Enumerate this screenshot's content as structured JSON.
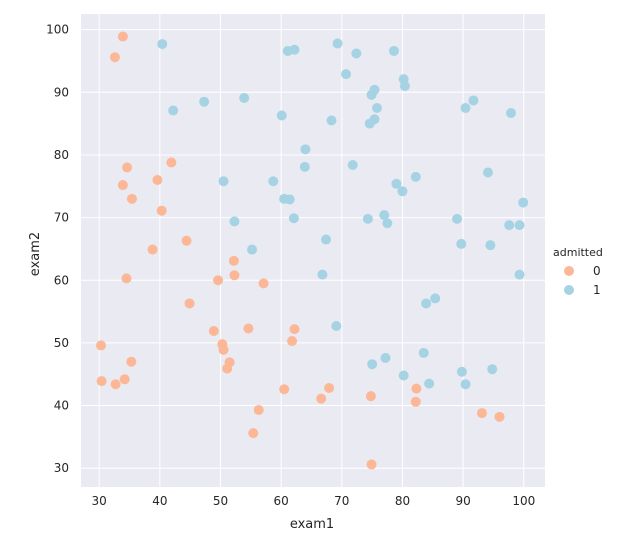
{
  "chart_data": {
    "type": "scatter",
    "xlabel": "exam1",
    "ylabel": "exam2",
    "xlim": [
      27.0,
      103.5
    ],
    "ylim": [
      27.0,
      102.5
    ],
    "xticks": [
      30,
      40,
      50,
      60,
      70,
      80,
      90,
      100
    ],
    "yticks": [
      30,
      40,
      50,
      60,
      70,
      80,
      90,
      100
    ],
    "grid": true,
    "background": "#eaeaf2",
    "legend": {
      "title": "admitted",
      "placement": "right"
    },
    "series": [
      {
        "name": "0",
        "color": "#fcb796",
        "points": [
          [
            33.9,
            98.9
          ],
          [
            32.6,
            95.6
          ],
          [
            34.6,
            78.0
          ],
          [
            41.9,
            78.8
          ],
          [
            39.6,
            76.0
          ],
          [
            33.9,
            75.2
          ],
          [
            35.4,
            73.0
          ],
          [
            40.3,
            71.1
          ],
          [
            44.4,
            66.3
          ],
          [
            38.8,
            64.9
          ],
          [
            52.2,
            63.1
          ],
          [
            34.5,
            60.3
          ],
          [
            52.3,
            60.8
          ],
          [
            49.6,
            60.0
          ],
          [
            57.1,
            59.5
          ],
          [
            44.9,
            56.3
          ],
          [
            48.9,
            51.9
          ],
          [
            62.2,
            52.2
          ],
          [
            54.6,
            52.3
          ],
          [
            50.3,
            49.8
          ],
          [
            30.3,
            49.6
          ],
          [
            61.8,
            50.3
          ],
          [
            50.5,
            48.9
          ],
          [
            51.5,
            46.9
          ],
          [
            35.3,
            47.0
          ],
          [
            51.1,
            45.9
          ],
          [
            34.2,
            44.2
          ],
          [
            30.4,
            43.9
          ],
          [
            32.7,
            43.4
          ],
          [
            60.5,
            42.6
          ],
          [
            67.9,
            42.8
          ],
          [
            82.3,
            42.7
          ],
          [
            66.6,
            41.1
          ],
          [
            74.8,
            41.5
          ],
          [
            82.2,
            40.6
          ],
          [
            56.3,
            39.3
          ],
          [
            93.1,
            38.8
          ],
          [
            96.0,
            38.2
          ],
          [
            55.4,
            35.6
          ],
          [
            74.9,
            30.6
          ]
        ]
      },
      {
        "name": "1",
        "color": "#a6d3e4",
        "points": [
          [
            40.4,
            97.7
          ],
          [
            61.1,
            96.6
          ],
          [
            62.2,
            96.8
          ],
          [
            69.3,
            97.8
          ],
          [
            72.4,
            96.2
          ],
          [
            78.6,
            96.6
          ],
          [
            70.7,
            92.9
          ],
          [
            80.2,
            92.1
          ],
          [
            75.4,
            90.4
          ],
          [
            74.9,
            89.6
          ],
          [
            80.4,
            91.0
          ],
          [
            91.7,
            88.7
          ],
          [
            90.4,
            87.5
          ],
          [
            97.9,
            86.7
          ],
          [
            47.3,
            88.5
          ],
          [
            53.9,
            89.1
          ],
          [
            42.2,
            87.1
          ],
          [
            75.8,
            87.5
          ],
          [
            60.1,
            86.3
          ],
          [
            68.3,
            85.5
          ],
          [
            75.4,
            85.7
          ],
          [
            74.6,
            85.0
          ],
          [
            64.0,
            80.9
          ],
          [
            63.9,
            78.1
          ],
          [
            71.8,
            78.4
          ],
          [
            82.2,
            76.5
          ],
          [
            94.1,
            77.2
          ],
          [
            79.0,
            75.4
          ],
          [
            80.0,
            74.2
          ],
          [
            50.5,
            75.8
          ],
          [
            58.7,
            75.8
          ],
          [
            60.5,
            73.0
          ],
          [
            61.4,
            72.9
          ],
          [
            99.9,
            72.4
          ],
          [
            62.1,
            69.9
          ],
          [
            74.3,
            69.8
          ],
          [
            77.0,
            70.4
          ],
          [
            77.5,
            69.1
          ],
          [
            89.0,
            69.8
          ],
          [
            97.6,
            68.8
          ],
          [
            99.3,
            68.8
          ],
          [
            52.3,
            69.4
          ],
          [
            67.4,
            66.5
          ],
          [
            89.7,
            65.8
          ],
          [
            94.5,
            65.6
          ],
          [
            55.2,
            64.9
          ],
          [
            66.8,
            60.9
          ],
          [
            99.3,
            60.9
          ],
          [
            85.4,
            57.1
          ],
          [
            83.9,
            56.3
          ],
          [
            69.1,
            52.7
          ],
          [
            77.2,
            47.6
          ],
          [
            83.5,
            48.4
          ],
          [
            75.0,
            46.6
          ],
          [
            80.2,
            44.8
          ],
          [
            89.8,
            45.4
          ],
          [
            94.8,
            45.8
          ],
          [
            84.4,
            43.5
          ],
          [
            90.4,
            43.4
          ]
        ]
      }
    ]
  }
}
